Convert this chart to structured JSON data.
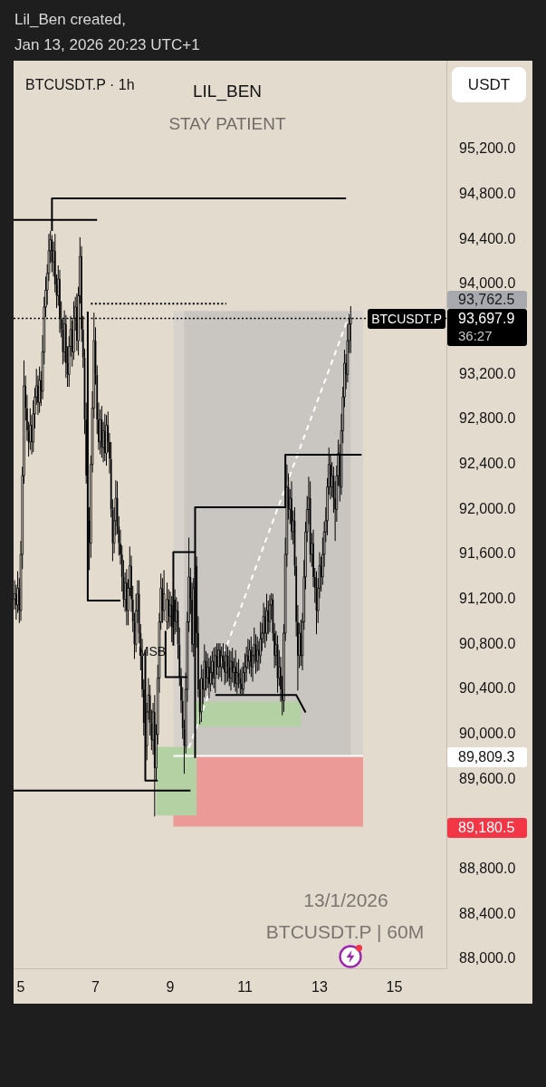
{
  "chart_data": {
    "type": "candlestick",
    "title": "BTCUSDT.P · 1h",
    "ylabel": "USDT",
    "annotations": [
      "Lil_Ben created,",
      "Jan 13, 2026 20:23 UTC+1",
      "LIL_BEN",
      "STAY PATIENT",
      "13/1/2026",
      "BTCUSDT.P | 60M",
      "MSB",
      "93,762.5",
      "89,809.3",
      "89,180.5",
      "BTCUSDT.P",
      "36:27"
    ],
    "xlim": [
      "2026-01-04T19:20",
      "2026-01-16T09:30"
    ],
    "xticks": [
      {
        "value": "2026-01-05",
        "label": "5"
      },
      {
        "value": "2026-01-07",
        "label": "7"
      },
      {
        "value": "2026-01-09",
        "label": "9"
      },
      {
        "value": "2026-01-11",
        "label": "11"
      },
      {
        "value": "2026-01-13",
        "label": "13"
      },
      {
        "value": "2026-01-15",
        "label": "15"
      }
    ],
    "ylim": [
      87920,
      95990
    ],
    "yticks": [
      {
        "value": 88000,
        "label": "88,000.0"
      },
      {
        "value": 88400,
        "label": "88,400.0"
      },
      {
        "value": 88800,
        "label": "88,800.0"
      },
      {
        "value": 89600,
        "label": "89,600.0"
      },
      {
        "value": 90000,
        "label": "90,000.0"
      },
      {
        "value": 90400,
        "label": "90,400.0"
      },
      {
        "value": 90800,
        "label": "90,800.0"
      },
      {
        "value": 91200,
        "label": "91,200.0"
      },
      {
        "value": 91600,
        "label": "91,600.0"
      },
      {
        "value": 92000,
        "label": "92,000.0"
      },
      {
        "value": 92400,
        "label": "92,400.0"
      },
      {
        "value": 92800,
        "label": "92,800.0"
      },
      {
        "value": 93200,
        "label": "93,200.0"
      },
      {
        "value": 94000,
        "label": "94,000.0"
      },
      {
        "value": 94400,
        "label": "94,400.0"
      },
      {
        "value": 94800,
        "label": "94,800.0"
      },
      {
        "value": 95200,
        "label": "95,200.0"
      }
    ],
    "ref_lines": [
      {
        "axis": "y",
        "value": 93697.9,
        "label": "93,697.9",
        "color": "#000000",
        "line_style": "dotted"
      }
    ],
    "color": "#000000",
    "series": [
      {
        "type": "area",
        "color": "#d7d2cb",
        "x": [
          "2026-01-09T02:00",
          "2026-01-14T04:00"
        ],
        "values": [
          null,
          null
        ],
        "lower": [
          89809.3,
          89809.3
        ],
        "upper": [
          93762.5,
          93762.5
        ]
      },
      {
        "type": "area",
        "color": "#c9c5c1",
        "x": [
          "2026-01-09T09:00",
          "2026-01-13T20:00"
        ],
        "values": [
          null,
          null
        ],
        "lower": [
          89809.3,
          89809.3
        ],
        "upper": [
          93762.5,
          93762.5
        ]
      },
      {
        "type": "area",
        "color": "#eb9a98",
        "x": [
          "2026-01-09T02:00",
          "2026-01-14T04:00"
        ],
        "values": [
          null,
          null
        ],
        "lower": [
          89180.5,
          89180.5
        ],
        "upper": [
          89809.3,
          89809.3
        ]
      },
      {
        "type": "area",
        "color": "#b3d1a2",
        "x": [
          "2026-01-08T15:00",
          "2026-01-09T17:00"
        ],
        "values": [
          null,
          null
        ],
        "lower": [
          89280,
          89280
        ],
        "upper": [
          89890,
          89890
        ]
      },
      {
        "type": "area",
        "color": "#b3d1a2",
        "x": [
          "2026-01-09T15:00",
          "2026-01-12T12:00"
        ],
        "values": [
          null,
          null
        ],
        "lower": [
          90070,
          90070
        ],
        "upper": [
          90290,
          90290
        ]
      },
      {
        "type": "line",
        "color": "#ffffff",
        "x": [
          "2026-01-09T02:00",
          "2026-01-14T04:00"
        ],
        "values": [
          89809.3,
          89809.3
        ]
      },
      {
        "type": "line",
        "color": "#ffffff",
        "line_style": "dashed",
        "x": [
          "2026-01-09T12:00",
          "2026-01-13T20:00"
        ],
        "values": [
          89880,
          93762.5
        ]
      },
      {
        "type": "line",
        "color": "#000000",
        "x": [
          "2026-01-05T20:00",
          "2026-01-05T20:00",
          "2026-01-13T17:00"
        ],
        "values": [
          94475,
          94765,
          94765
        ]
      },
      {
        "type": "line",
        "color": "#000000",
        "x": [
          "2026-01-04T19:20",
          "2026-01-07T01:00"
        ],
        "values": [
          94575,
          94575
        ]
      },
      {
        "type": "line",
        "color": "#000000",
        "line_style": "dotted",
        "x": [
          "2026-01-06T21:00",
          "2026-01-10T12:00"
        ],
        "values": [
          93830,
          93830
        ]
      },
      {
        "type": "line",
        "color": "#000000",
        "x": [
          "2026-01-06T19:00",
          "2026-01-06T19:00",
          "2026-01-07T16:00"
        ],
        "values": [
          93760,
          91190,
          91190
        ]
      },
      {
        "type": "line",
        "color": "#000000",
        "x": [
          "2026-01-08T08:00",
          "2026-01-08T08:00",
          "2026-01-08T16:00"
        ],
        "values": [
          90750,
          89590,
          89590
        ]
      },
      {
        "type": "line",
        "color": "#000000",
        "x": [
          "2026-01-08T21:00",
          "2026-01-08T21:00",
          "2026-01-09T11:00"
        ],
        "values": [
          90920,
          90510,
          90510
        ]
      },
      {
        "type": "line",
        "color": "#000000",
        "x": [
          "2026-01-09T02:00",
          "2026-01-09T02:00",
          "2026-01-09T16:00"
        ],
        "values": [
          90790,
          91620,
          91620
        ]
      },
      {
        "type": "line",
        "color": "#000000",
        "x": [
          "2026-01-09T16:00",
          "2026-01-09T16:00",
          "2026-01-12T02:00",
          "2026-01-12T02:00",
          "2026-01-14T03:00"
        ],
        "values": [
          89790,
          92020,
          92020,
          92487,
          92487
        ]
      },
      {
        "type": "line",
        "color": "#000000",
        "x": [
          "2026-01-10T05:00",
          "2026-01-12T09:00",
          "2026-01-12T15:00"
        ],
        "values": [
          90350,
          90350,
          90195
        ]
      },
      {
        "type": "line",
        "color": "#000000",
        "x": [
          "2026-01-04T19:20",
          "2026-01-09T13:00"
        ],
        "values": [
          89500,
          89500
        ]
      }
    ],
    "x": [
      "2026-01-04T20:00",
      "2026-01-04T21:00",
      "2026-01-04T22:00",
      "2026-01-04T23:00",
      "2026-01-05T00:00",
      "2026-01-05T01:00",
      "2026-01-05T02:00",
      "2026-01-05T03:00",
      "2026-01-05T04:00",
      "2026-01-05T05:00",
      "2026-01-05T06:00",
      "2026-01-05T07:00",
      "2026-01-05T08:00",
      "2026-01-05T09:00",
      "2026-01-05T10:00",
      "2026-01-05T11:00",
      "2026-01-05T12:00",
      "2026-01-05T13:00",
      "2026-01-05T14:00",
      "2026-01-05T15:00",
      "2026-01-05T16:00",
      "2026-01-05T17:00",
      "2026-01-05T18:00",
      "2026-01-05T19:00",
      "2026-01-05T20:00",
      "2026-01-05T21:00",
      "2026-01-05T22:00",
      "2026-01-05T23:00",
      "2026-01-06T00:00",
      "2026-01-06T01:00",
      "2026-01-06T02:00",
      "2026-01-06T03:00",
      "2026-01-06T04:00",
      "2026-01-06T05:00",
      "2026-01-06T06:00",
      "2026-01-06T07:00",
      "2026-01-06T08:00",
      "2026-01-06T09:00",
      "2026-01-06T10:00",
      "2026-01-06T11:00",
      "2026-01-06T12:00",
      "2026-01-06T13:00",
      "2026-01-06T14:00",
      "2026-01-06T15:00",
      "2026-01-06T16:00",
      "2026-01-06T17:00",
      "2026-01-06T18:00",
      "2026-01-06T20:00",
      "2026-01-06T21:00",
      "2026-01-06T22:00",
      "2026-01-06T23:00",
      "2026-01-07T00:00",
      "2026-01-07T01:00",
      "2026-01-07T02:00",
      "2026-01-07T03:00",
      "2026-01-07T04:00",
      "2026-01-07T05:00",
      "2026-01-07T06:00",
      "2026-01-07T07:00",
      "2026-01-07T08:00",
      "2026-01-07T09:00",
      "2026-01-07T10:00",
      "2026-01-07T11:00",
      "2026-01-07T12:00",
      "2026-01-07T13:00",
      "2026-01-07T14:00",
      "2026-01-07T15:00",
      "2026-01-07T16:00",
      "2026-01-07T17:00",
      "2026-01-07T18:00",
      "2026-01-07T19:00",
      "2026-01-07T20:00",
      "2026-01-07T21:00",
      "2026-01-07T22:00",
      "2026-01-07T23:00",
      "2026-01-08T00:00",
      "2026-01-08T01:00",
      "2026-01-08T02:00",
      "2026-01-08T03:00",
      "2026-01-08T04:00",
      "2026-01-08T05:00",
      "2026-01-08T06:00",
      "2026-01-08T07:00",
      "2026-01-08T09:00",
      "2026-01-08T10:00",
      "2026-01-08T11:00",
      "2026-01-08T12:00",
      "2026-01-08T13:00",
      "2026-01-08T14:00",
      "2026-01-08T15:00",
      "2026-01-08T16:00",
      "2026-01-08T17:00",
      "2026-01-08T18:00",
      "2026-01-08T19:00",
      "2026-01-08T20:00",
      "2026-01-08T22:00",
      "2026-01-08T23:00",
      "2026-01-09T00:00",
      "2026-01-09T01:00",
      "2026-01-09T03:00",
      "2026-01-09T04:00",
      "2026-01-09T05:00",
      "2026-01-09T06:00",
      "2026-01-09T07:00",
      "2026-01-09T08:00",
      "2026-01-09T09:00",
      "2026-01-09T10:00",
      "2026-01-09T11:00",
      "2026-01-09T12:00",
      "2026-01-09T13:00",
      "2026-01-09T14:00",
      "2026-01-09T15:00",
      "2026-01-09T17:00",
      "2026-01-09T18:00",
      "2026-01-09T19:00",
      "2026-01-09T20:00",
      "2026-01-09T21:00",
      "2026-01-09T22:00",
      "2026-01-09T23:00",
      "2026-01-10T00:00",
      "2026-01-10T01:00",
      "2026-01-10T02:00",
      "2026-01-10T03:00",
      "2026-01-10T04:00",
      "2026-01-10T05:00",
      "2026-01-10T06:00",
      "2026-01-10T07:00",
      "2026-01-10T08:00",
      "2026-01-10T09:00",
      "2026-01-10T10:00",
      "2026-01-10T11:00",
      "2026-01-10T12:00",
      "2026-01-10T13:00",
      "2026-01-10T14:00",
      "2026-01-10T15:00",
      "2026-01-10T16:00",
      "2026-01-10T17:00",
      "2026-01-10T18:00",
      "2026-01-10T19:00",
      "2026-01-10T20:00",
      "2026-01-10T21:00",
      "2026-01-10T22:00",
      "2026-01-10T23:00",
      "2026-01-11T00:00",
      "2026-01-11T01:00",
      "2026-01-11T02:00",
      "2026-01-11T03:00",
      "2026-01-11T04:00",
      "2026-01-11T05:00",
      "2026-01-11T06:00",
      "2026-01-11T07:00",
      "2026-01-11T08:00",
      "2026-01-11T09:00",
      "2026-01-11T10:00",
      "2026-01-11T11:00",
      "2026-01-11T12:00",
      "2026-01-11T13:00",
      "2026-01-11T14:00",
      "2026-01-11T15:00",
      "2026-01-11T16:00",
      "2026-01-11T17:00",
      "2026-01-11T18:00",
      "2026-01-11T19:00",
      "2026-01-11T20:00",
      "2026-01-11T21:00",
      "2026-01-11T22:00",
      "2026-01-11T23:00",
      "2026-01-12T00:00",
      "2026-01-12T01:00",
      "2026-01-12T02:00",
      "2026-01-12T03:00",
      "2026-01-12T04:00",
      "2026-01-12T05:00",
      "2026-01-12T06:00",
      "2026-01-12T07:00",
      "2026-01-12T08:00",
      "2026-01-12T09:00",
      "2026-01-12T10:00",
      "2026-01-12T11:00",
      "2026-01-12T12:00",
      "2026-01-12T13:00",
      "2026-01-12T14:00",
      "2026-01-12T15:00",
      "2026-01-12T16:00",
      "2026-01-12T17:00",
      "2026-01-12T18:00",
      "2026-01-12T19:00",
      "2026-01-12T20:00",
      "2026-01-12T21:00",
      "2026-01-12T22:00",
      "2026-01-12T23:00",
      "2026-01-13T00:00",
      "2026-01-13T01:00",
      "2026-01-13T02:00",
      "2026-01-13T03:00",
      "2026-01-13T04:00",
      "2026-01-13T05:00",
      "2026-01-13T06:00",
      "2026-01-13T07:00",
      "2026-01-13T08:00",
      "2026-01-13T09:00",
      "2026-01-13T10:00",
      "2026-01-13T11:00",
      "2026-01-13T12:00",
      "2026-01-13T13:00",
      "2026-01-13T14:00",
      "2026-01-13T15:00",
      "2026-01-13T16:00",
      "2026-01-13T17:00",
      "2026-01-13T18:00",
      "2026-01-13T19:00",
      "2026-01-13T20:00"
    ],
    "ohlc": [
      [
        91200,
        91370,
        91110,
        91250
      ],
      [
        91250,
        91330,
        91020,
        91150
      ],
      [
        91150,
        91450,
        91080,
        91300
      ],
      [
        91300,
        91390,
        90990,
        91100
      ],
      [
        91100,
        91720,
        91010,
        91600
      ],
      [
        91600,
        92380,
        91470,
        92300
      ],
      [
        92300,
        93325,
        92230,
        93100
      ],
      [
        93100,
        93190,
        92790,
        92900
      ],
      [
        92900,
        93020,
        92610,
        92700
      ],
      [
        92700,
        92780,
        92470,
        92600
      ],
      [
        92600,
        92900,
        92530,
        92750
      ],
      [
        92750,
        92840,
        92490,
        92600
      ],
      [
        92600,
        92970,
        92510,
        92850
      ],
      [
        92850,
        93080,
        92720,
        93000
      ],
      [
        93000,
        93250,
        92930,
        93100
      ],
      [
        93100,
        93190,
        92840,
        92950
      ],
      [
        92950,
        93270,
        92860,
        93150
      ],
      [
        93150,
        93230,
        92920,
        93050
      ],
      [
        93050,
        93550,
        92980,
        93400
      ],
      [
        93400,
        93890,
        93290,
        93800
      ],
      [
        93800,
        94070,
        93710,
        93950
      ],
      [
        93950,
        94180,
        93820,
        94100
      ],
      [
        94100,
        94450,
        94030,
        94300
      ],
      [
        94300,
        94475,
        94190,
        94400
      ],
      [
        94400,
        94440,
        94110,
        94200
      ],
      [
        94200,
        94380,
        94070,
        94300
      ],
      [
        94300,
        94450,
        93930,
        94000
      ],
      [
        94000,
        94090,
        93790,
        93900
      ],
      [
        93900,
        94170,
        93810,
        94050
      ],
      [
        94050,
        94130,
        93570,
        93700
      ],
      [
        93700,
        93850,
        93530,
        93600
      ],
      [
        93600,
        93690,
        93290,
        93400
      ],
      [
        93400,
        93770,
        93310,
        93650
      ],
      [
        93650,
        93730,
        93170,
        93300
      ],
      [
        93300,
        93450,
        93090,
        93200
      ],
      [
        93200,
        93540,
        93090,
        93450
      ],
      [
        93450,
        93720,
        93360,
        93600
      ],
      [
        93600,
        93680,
        93270,
        93400
      ],
      [
        93400,
        93850,
        93330,
        93700
      ],
      [
        93700,
        93890,
        93590,
        93800
      ],
      [
        93800,
        93920,
        93410,
        93500
      ],
      [
        93500,
        93980,
        93370,
        93900
      ],
      [
        93900,
        94420,
        93830,
        94250
      ],
      [
        94250,
        94340,
        93490,
        93600
      ],
      [
        93600,
        93720,
        93260,
        93350
      ],
      [
        93350,
        93430,
        92670,
        92800
      ],
      [
        92800,
        92950,
        92230,
        92300
      ],
      [
        91900,
        92020,
        91460,
        91700
      ],
      [
        91700,
        92480,
        91570,
        92400
      ],
      [
        92400,
        93050,
        92330,
        92900
      ],
      [
        92900,
        93750,
        92810,
        93500
      ],
      [
        93500,
        93620,
        93110,
        93200
      ],
      [
        93200,
        93280,
        92670,
        92800
      ],
      [
        92800,
        92950,
        92530,
        92600
      ],
      [
        92600,
        92890,
        92490,
        92800
      ],
      [
        92800,
        92920,
        92460,
        92550
      ],
      [
        92550,
        92780,
        92420,
        92700
      ],
      [
        92700,
        92850,
        92430,
        92500
      ],
      [
        92500,
        92840,
        92390,
        92750
      ],
      [
        92750,
        92870,
        92510,
        92600
      ],
      [
        92600,
        92680,
        92320,
        92450
      ],
      [
        92450,
        92600,
        91930,
        92000
      ],
      [
        92000,
        92090,
        91540,
        91700
      ],
      [
        91700,
        92020,
        91610,
        91900
      ],
      [
        91900,
        92260,
        91770,
        92100
      ],
      [
        92100,
        92250,
        91780,
        91850
      ],
      [
        91850,
        91940,
        91590,
        91700
      ],
      [
        91700,
        91820,
        91510,
        91600
      ],
      [
        91600,
        91680,
        91270,
        91400
      ],
      [
        91400,
        91550,
        91130,
        91200
      ],
      [
        91200,
        91440,
        91090,
        91350
      ],
      [
        91350,
        91470,
        90970,
        91100
      ],
      [
        91100,
        91380,
        90970,
        91300
      ],
      [
        91300,
        91670,
        91230,
        91500
      ],
      [
        91500,
        91590,
        91090,
        91200
      ],
      [
        91200,
        91320,
        90910,
        91000
      ],
      [
        91000,
        91080,
        90670,
        90800
      ],
      [
        90800,
        91250,
        90730,
        91100
      ],
      [
        91100,
        91370,
        90990,
        91250
      ],
      [
        91250,
        91370,
        90810,
        90900
      ],
      [
        90900,
        90980,
        90570,
        90700
      ],
      [
        90700,
        90850,
        90330,
        90400
      ],
      [
        90400,
        90490,
        89990,
        90100
      ],
      [
        89900,
        90280,
        89770,
        90200
      ],
      [
        90200,
        90500,
        90130,
        90350
      ],
      [
        90350,
        90440,
        89990,
        90100
      ],
      [
        90100,
        90220,
        89860,
        89950
      ],
      [
        89950,
        90280,
        89820,
        90200
      ],
      [
        90200,
        90350,
        89270,
        89700
      ],
      [
        89700,
        90090,
        89590,
        90000
      ],
      [
        90000,
        90620,
        89910,
        90500
      ],
      [
        90500,
        91080,
        90370,
        91000
      ],
      [
        91000,
        91430,
        90930,
        91300
      ],
      [
        91300,
        91390,
        90990,
        91100
      ],
      [
        91100,
        91460,
        91010,
        91250
      ],
      [
        91000,
        91350,
        90930,
        91200
      ],
      [
        91200,
        91290,
        90940,
        91050
      ],
      [
        91050,
        91270,
        90960,
        91150
      ],
      [
        91150,
        91230,
        90820,
        90950
      ],
      [
        91200,
        91290,
        90890,
        91000
      ],
      [
        91000,
        91220,
        90910,
        91100
      ],
      [
        91100,
        91180,
        90670,
        90800
      ],
      [
        90800,
        90950,
        90430,
        90500
      ],
      [
        90500,
        90590,
        90190,
        90300
      ],
      [
        90300,
        90420,
        89960,
        90050
      ],
      [
        90050,
        90130,
        89650,
        89900
      ],
      [
        89900,
        90550,
        89830,
        90400
      ],
      [
        90400,
        91090,
        90290,
        91000
      ],
      [
        91000,
        91750,
        90910,
        91400
      ],
      [
        91400,
        91480,
        91070,
        91200
      ],
      [
        91200,
        91350,
        90730,
        90800
      ],
      [
        90800,
        91390,
        90690,
        91300
      ],
      [
        91500,
        91580,
        90770,
        90900
      ],
      [
        90900,
        91050,
        90330,
        90400
      ],
      [
        90400,
        90490,
        90090,
        90200
      ],
      [
        90200,
        90620,
        90110,
        90500
      ],
      [
        90500,
        90580,
        90270,
        90400
      ],
      [
        90400,
        90800,
        90330,
        90650
      ],
      [
        90650,
        90740,
        90390,
        90500
      ],
      [
        90500,
        90720,
        90410,
        90600
      ],
      [
        90600,
        90680,
        90320,
        90450
      ],
      [
        90450,
        90700,
        90380,
        90550
      ],
      [
        90550,
        90740,
        90440,
        90650
      ],
      [
        90650,
        90770,
        90410,
        90500
      ],
      [
        90500,
        90780,
        90370,
        90700
      ],
      [
        90700,
        90810,
        90530,
        90600
      ],
      [
        90600,
        90810,
        90490,
        90750
      ],
      [
        90750,
        90810,
        90510,
        90600
      ],
      [
        90600,
        90780,
        90470,
        90700
      ],
      [
        90700,
        90810,
        90580,
        90650
      ],
      [
        90650,
        90740,
        90440,
        90550
      ],
      [
        90550,
        90800,
        90460,
        90700
      ],
      [
        90700,
        90780,
        90470,
        90600
      ],
      [
        90600,
        90750,
        90430,
        90500
      ],
      [
        90500,
        90740,
        90390,
        90650
      ],
      [
        90650,
        90770,
        90460,
        90550
      ],
      [
        90550,
        90680,
        90420,
        90600
      ],
      [
        90600,
        90750,
        90380,
        90450
      ],
      [
        90450,
        90640,
        90360,
        90550
      ],
      [
        90550,
        90670,
        90410,
        90500
      ],
      [
        90500,
        90580,
        90360,
        90450
      ],
      [
        90450,
        90600,
        90355,
        90400
      ],
      [
        90400,
        90640,
        90360,
        90550
      ],
      [
        90550,
        90720,
        90460,
        90600
      ],
      [
        90600,
        90780,
        90470,
        90700
      ],
      [
        90700,
        90850,
        90580,
        90650
      ],
      [
        90650,
        90840,
        90540,
        90750
      ],
      [
        90750,
        90870,
        90510,
        90600
      ],
      [
        90600,
        90780,
        90470,
        90700
      ],
      [
        90700,
        90950,
        90630,
        90800
      ],
      [
        90800,
        90890,
        90540,
        90650
      ],
      [
        90650,
        90870,
        90560,
        90750
      ],
      [
        90750,
        90830,
        90570,
        90700
      ],
      [
        90700,
        91000,
        90630,
        90850
      ],
      [
        90850,
        90990,
        90740,
        90900
      ],
      [
        90900,
        91170,
        90810,
        91050
      ],
      [
        91050,
        91130,
        90770,
        90900
      ],
      [
        90900,
        91250,
        90830,
        91100
      ],
      [
        91100,
        91190,
        90890,
        91000
      ],
      [
        91000,
        91240,
        90910,
        91150
      ],
      [
        91150,
        91255,
        91020,
        91200
      ],
      [
        91200,
        91250,
        90830,
        90900
      ],
      [
        90900,
        90990,
        90590,
        90700
      ],
      [
        90700,
        90920,
        90610,
        90800
      ],
      [
        90800,
        90880,
        90370,
        90500
      ],
      [
        90500,
        90750,
        90430,
        90600
      ],
      [
        90600,
        90690,
        90290,
        90400
      ],
      [
        90400,
        90520,
        90170,
        90300
      ],
      [
        90300,
        90980,
        90200,
        90900
      ],
      [
        90900,
        91750,
        90830,
        91600
      ],
      [
        91600,
        92400,
        91490,
        92200
      ],
      [
        92200,
        92320,
        91910,
        92000
      ],
      [
        92000,
        92180,
        91870,
        92100
      ],
      [
        92100,
        92250,
        91730,
        91800
      ],
      [
        91800,
        91990,
        91690,
        91900
      ],
      [
        91900,
        92020,
        91410,
        91500
      ],
      [
        91500,
        91580,
        90870,
        91000
      ],
      [
        91000,
        91150,
        90390,
        90700
      ],
      [
        90700,
        90990,
        90590,
        90900
      ],
      [
        90900,
        91020,
        90610,
        90700
      ],
      [
        90700,
        91080,
        90570,
        91000
      ],
      [
        91000,
        91550,
        90930,
        91400
      ],
      [
        91400,
        91890,
        91290,
        91800
      ],
      [
        91800,
        92120,
        91710,
        92000
      ],
      [
        92000,
        92290,
        91870,
        92100
      ],
      [
        92100,
        92250,
        91530,
        91600
      ],
      [
        91600,
        91790,
        91490,
        91700
      ],
      [
        91700,
        91820,
        91310,
        91400
      ],
      [
        91400,
        91480,
        91170,
        91300
      ],
      [
        91300,
        91450,
        90890,
        91100
      ],
      [
        91100,
        91390,
        90990,
        91300
      ],
      [
        91300,
        91620,
        91210,
        91500
      ],
      [
        91500,
        91580,
        91270,
        91400
      ],
      [
        91400,
        91750,
        91330,
        91600
      ],
      [
        91600,
        91890,
        91490,
        91800
      ],
      [
        91800,
        92020,
        91710,
        91900
      ],
      [
        91900,
        92280,
        91770,
        92200
      ],
      [
        92200,
        92550,
        92130,
        92400
      ],
      [
        92400,
        92490,
        92090,
        92200
      ],
      [
        92200,
        92420,
        92110,
        92300
      ],
      [
        92300,
        92380,
        91970,
        92100
      ],
      [
        92100,
        92250,
        91720,
        92000
      ],
      [
        92000,
        92390,
        91890,
        92300
      ],
      [
        92300,
        92620,
        92210,
        92500
      ],
      [
        92500,
        92580,
        92070,
        92200
      ],
      [
        92200,
        92850,
        92130,
        92700
      ],
      [
        92700,
        93090,
        92590,
        93000
      ],
      [
        93000,
        93420,
        92910,
        93300
      ],
      [
        93300,
        93380,
        93070,
        93200
      ],
      [
        93200,
        93650,
        93130,
        93500
      ],
      [
        93500,
        93740,
        93390,
        93650
      ],
      [
        93650,
        93808,
        93390,
        93697.9
      ]
    ]
  }
}
